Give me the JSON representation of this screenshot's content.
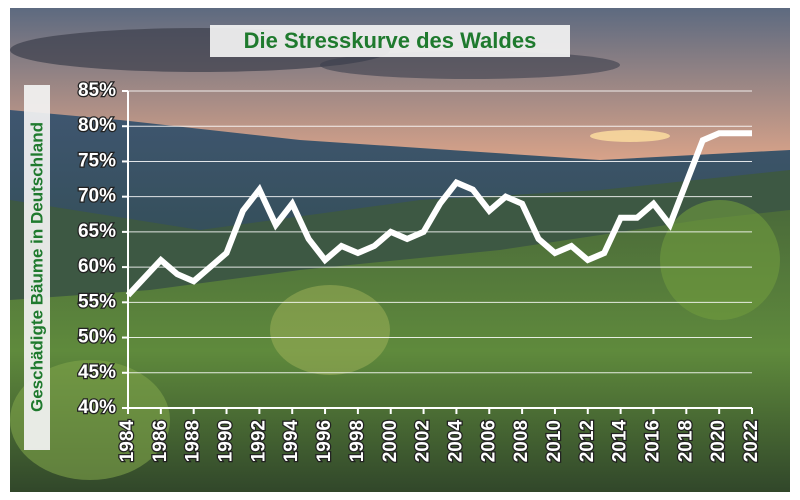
{
  "chart_data": {
    "type": "line",
    "title": "Die Stresskurve des Waldes",
    "y_label": "Geschädigte Bäume in Deutschland",
    "x": [
      1984,
      1985,
      1986,
      1987,
      1988,
      1989,
      1990,
      1991,
      1992,
      1993,
      1994,
      1995,
      1996,
      1997,
      1998,
      1999,
      2000,
      2001,
      2002,
      2003,
      2004,
      2005,
      2006,
      2007,
      2008,
      2009,
      2010,
      2011,
      2012,
      2013,
      2014,
      2015,
      2016,
      2017,
      2018,
      2019,
      2020,
      2021,
      2022
    ],
    "values": [
      56,
      58.5,
      61,
      59,
      58,
      60,
      62,
      68,
      71,
      66,
      69,
      64,
      61,
      63,
      62,
      63,
      65,
      64,
      65,
      69,
      72,
      71,
      68,
      70,
      69,
      64,
      62,
      63,
      61,
      62,
      67,
      67,
      69,
      66,
      72,
      78,
      79,
      79,
      79
    ],
    "color": "#ffffff",
    "xlim": [
      1984,
      2022
    ],
    "xticks": [
      1984,
      1986,
      1988,
      1990,
      1992,
      1994,
      1996,
      1998,
      2000,
      2002,
      2004,
      2006,
      2008,
      2010,
      2012,
      2014,
      2016,
      2018,
      2020,
      2022
    ],
    "ylim": [
      40,
      85
    ],
    "yticks": [
      {
        "value": 40,
        "label": "40%"
      },
      {
        "value": 45,
        "label": "45%"
      },
      {
        "value": 50,
        "label": "50%"
      },
      {
        "value": 55,
        "label": "55%"
      },
      {
        "value": 60,
        "label": "60%"
      },
      {
        "value": 65,
        "label": "65%"
      },
      {
        "value": 70,
        "label": "70%"
      },
      {
        "value": 75,
        "label": "75%"
      },
      {
        "value": 80,
        "label": "80%"
      },
      {
        "value": 85,
        "label": "85%"
      }
    ],
    "grid": true
  }
}
